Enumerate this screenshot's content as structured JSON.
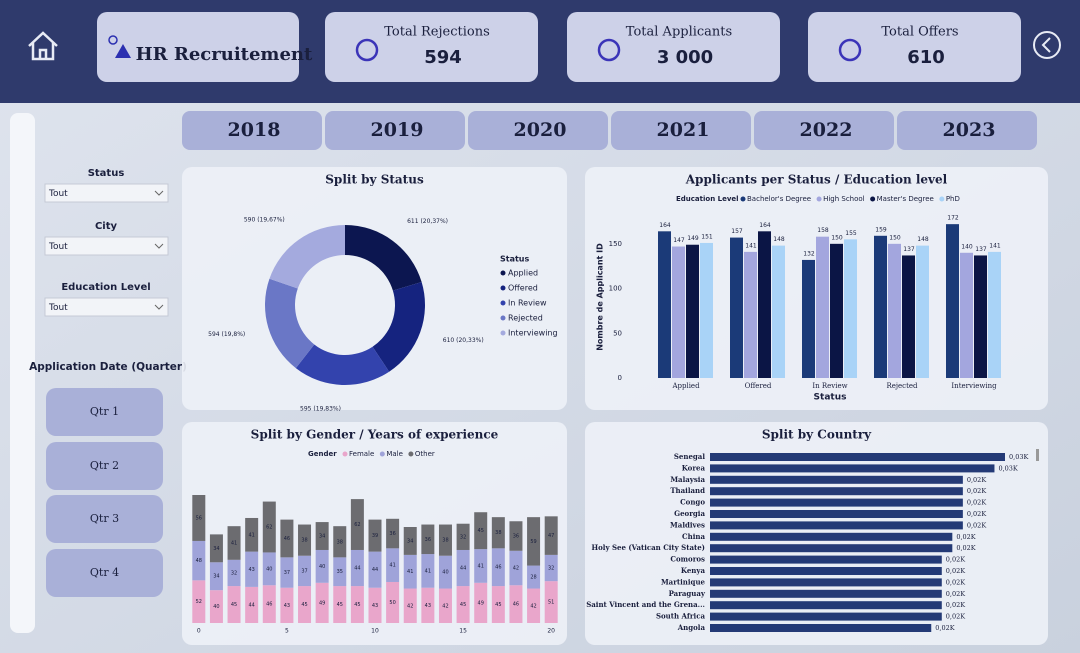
{
  "header": {
    "title": "HR Recruitement",
    "kpis": [
      {
        "label": "Total Rejections",
        "value": "594"
      },
      {
        "label": "Total Applicants",
        "value": "3 000"
      },
      {
        "label": "Total Offers",
        "value": "610"
      }
    ]
  },
  "years": [
    "2018",
    "2019",
    "2020",
    "2021",
    "2022",
    "2023"
  ],
  "filters": [
    {
      "label": "Status",
      "value": "Tout"
    },
    {
      "label": "City",
      "value": "Tout"
    },
    {
      "label": "Education Level",
      "value": "Tout"
    }
  ],
  "date_filter": {
    "label": "Application Date (Quarter)",
    "options": [
      "Qtr 1",
      "Qtr 2",
      "Qtr 3",
      "Qtr 4"
    ]
  },
  "chart_data": [
    {
      "type": "donut",
      "title": "Split by Status",
      "legend_title": "Status",
      "categories": [
        "Applied",
        "Offered",
        "In Review",
        "Rejected",
        "Interviewing"
      ],
      "values": [
        611,
        610,
        595,
        594,
        590
      ],
      "value_labels": [
        "611 (20,37%)",
        "610 (20,33%)",
        "595 (19,83%)",
        "594 (19,8%)",
        "590 (19,67%)"
      ],
      "colors": [
        "#0c1650",
        "#15237f",
        "#3343ad",
        "#6a77c6",
        "#a4aade"
      ]
    },
    {
      "type": "bar",
      "title": "Applicants per Status / Education level",
      "legend_title": "Education Level",
      "categories": [
        "Applied",
        "Offered",
        "In Review",
        "Rejected",
        "Interviewing"
      ],
      "series": [
        {
          "name": "Bachelor's Degree",
          "color": "#1b3a78",
          "values": [
            164,
            157,
            132,
            159,
            172
          ]
        },
        {
          "name": "High School",
          "color": "#a3a6de",
          "values": [
            147,
            141,
            158,
            150,
            140
          ]
        },
        {
          "name": "Master's Degree",
          "color": "#0b1545",
          "values": [
            149,
            164,
            150,
            137,
            137
          ]
        },
        {
          "name": "PhD",
          "color": "#a9d3f7",
          "values": [
            151,
            148,
            155,
            148,
            141
          ]
        }
      ],
      "ylim": [
        0,
        180
      ],
      "yticks": [
        0,
        50,
        100,
        150
      ],
      "ylabel": "Nombre de Applicant ID",
      "xlabel": "Status"
    },
    {
      "type": "stacked_bar",
      "title": "Split by Gender / Years of experience",
      "legend_title": "Gender",
      "x": [
        0,
        1,
        2,
        3,
        4,
        5,
        6,
        7,
        8,
        9,
        10,
        11,
        12,
        13,
        14,
        15,
        16,
        17,
        18,
        19,
        20
      ],
      "xlim": [
        -0.5,
        20.5
      ],
      "xticks": [
        0,
        5,
        10,
        15,
        20
      ],
      "series": [
        {
          "name": "Female",
          "color": "#e9a6cb",
          "values": [
            52,
            40,
            45,
            44,
            46,
            43,
            45,
            49,
            45,
            45,
            43,
            50,
            42,
            43,
            42,
            45,
            49,
            45,
            46,
            42,
            51
          ]
        },
        {
          "name": "Male",
          "color": "#9fa3d9",
          "values": [
            48,
            34,
            32,
            43,
            40,
            37,
            37,
            40,
            35,
            44,
            44,
            41,
            41,
            41,
            40,
            44,
            41,
            46,
            42,
            28,
            32
          ]
        },
        {
          "name": "Other",
          "color": "#6c6c70",
          "values": [
            56,
            34,
            41,
            41,
            62,
            46,
            38,
            34,
            38,
            62,
            39,
            36,
            34,
            36,
            38,
            32,
            45,
            38,
            36,
            59,
            47
          ]
        }
      ]
    },
    {
      "type": "hbar",
      "title": "Split by Country",
      "color": "#243a76",
      "categories": [
        "Senegal",
        "Korea",
        "Malaysia",
        "Thailand",
        "Congo",
        "Georgia",
        "Maldives",
        "China",
        "Holy See (Vatican City State)",
        "Comoros",
        "Kenya",
        "Martinique",
        "Paraguay",
        "Saint Vincent and the Grena...",
        "South Africa",
        "Angola"
      ],
      "values": [
        28,
        27,
        24,
        24,
        24,
        24,
        24,
        23,
        23,
        22,
        22,
        22,
        22,
        22,
        22,
        21
      ],
      "value_labels": [
        "0,03K",
        "0,03K",
        "0,02K",
        "0,02K",
        "0,02K",
        "0,02K",
        "0,02K",
        "0,02K",
        "0,02K",
        "0,02K",
        "0,02K",
        "0,02K",
        "0,02K",
        "0,02K",
        "0,02K",
        "0,02K"
      ]
    }
  ]
}
